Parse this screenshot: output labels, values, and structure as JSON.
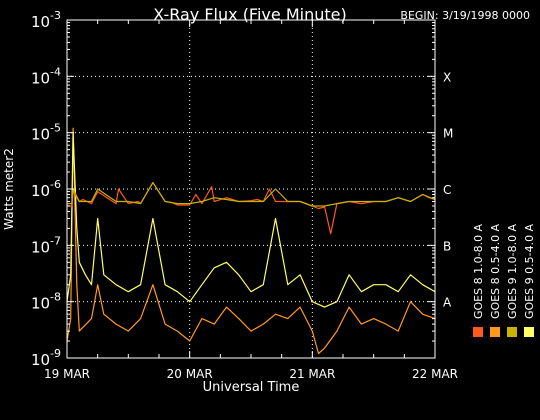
{
  "chart_data": {
    "type": "line",
    "title": "X-Ray Flux (Five Minute)",
    "begin_label": "BEGIN: 3/19/1998 0000",
    "xlabel": "Universal Time",
    "ylabel": "Watts meter2",
    "x_ticks": [
      "19 MAR",
      "20 MAR",
      "21 MAR",
      "22 MAR"
    ],
    "xlim_days": [
      0,
      3
    ],
    "y_scale": "log",
    "ylim": [
      1e-09,
      0.001
    ],
    "y_ticks": [
      {
        "base": "10",
        "exp": "-9"
      },
      {
        "base": "10",
        "exp": "-8"
      },
      {
        "base": "10",
        "exp": "-7"
      },
      {
        "base": "10",
        "exp": "-6"
      },
      {
        "base": "10",
        "exp": "-5"
      },
      {
        "base": "10",
        "exp": "-4"
      },
      {
        "base": "10",
        "exp": "-3"
      }
    ],
    "flare_classes": [
      {
        "label": "A",
        "value": 1e-08
      },
      {
        "label": "B",
        "value": 1e-07
      },
      {
        "label": "C",
        "value": 1e-06
      },
      {
        "label": "M",
        "value": 1e-05
      },
      {
        "label": "X",
        "value": 0.0001
      }
    ],
    "grid": true,
    "legend_position": "right",
    "series": [
      {
        "name": "GOES 8 1.0-8.0 A",
        "color": "#ff5a1e",
        "x": [
          0.0,
          0.04,
          0.05,
          0.1,
          0.13,
          0.2,
          0.25,
          0.4,
          0.42,
          0.5,
          0.58,
          0.6,
          0.7,
          0.8,
          0.85,
          0.9,
          1.0,
          1.05,
          1.1,
          1.18,
          1.2,
          1.3,
          1.4,
          1.5,
          1.55,
          1.6,
          1.65,
          1.7,
          1.8,
          1.9,
          2.0,
          2.05,
          2.1,
          2.15,
          2.2,
          2.3,
          2.4,
          2.5,
          2.6,
          2.7,
          2.8,
          2.9,
          2.95,
          3.0
        ],
        "y": [
          5e-07,
          5e-07,
          9e-07,
          6e-07,
          6.5e-07,
          5.5e-07,
          9e-07,
          5.5e-07,
          1e-06,
          5.5e-07,
          6e-07,
          5.5e-07,
          1.3e-06,
          6e-07,
          5.8e-07,
          5.2e-07,
          5.2e-07,
          8e-07,
          5.5e-07,
          1.1e-06,
          6e-07,
          7e-07,
          6e-07,
          6.2e-07,
          6.5e-07,
          6e-07,
          1e-06,
          6e-07,
          6e-07,
          6e-07,
          5e-07,
          4.5e-07,
          4.8e-07,
          1.6e-07,
          5.5e-07,
          6e-07,
          5.5e-07,
          6e-07,
          6e-07,
          7e-07,
          6e-07,
          8e-07,
          7e-07,
          6.5e-07
        ]
      },
      {
        "name": "GOES 8 0.5-4.0 A",
        "color": "#ff9a1e",
        "x": [
          0.0,
          0.03,
          0.05,
          0.08,
          0.1,
          0.2,
          0.25,
          0.3,
          0.4,
          0.5,
          0.6,
          0.7,
          0.8,
          0.9,
          1.0,
          1.1,
          1.2,
          1.3,
          1.4,
          1.5,
          1.6,
          1.7,
          1.8,
          1.9,
          2.0,
          2.05,
          2.1,
          2.2,
          2.3,
          2.4,
          2.5,
          2.6,
          2.7,
          2.8,
          2.9,
          3.0
        ],
        "y": [
          2e-09,
          5e-09,
          1.2e-05,
          2e-08,
          3e-09,
          5e-09,
          2e-08,
          6e-09,
          4e-09,
          3e-09,
          5e-09,
          2e-08,
          4e-09,
          3e-09,
          2e-09,
          5e-09,
          4e-09,
          8e-09,
          5e-09,
          3e-09,
          4e-09,
          6e-09,
          5e-09,
          8e-09,
          3e-09,
          1.2e-09,
          1.5e-09,
          3e-09,
          8e-09,
          4e-09,
          5e-09,
          4e-09,
          3e-09,
          1e-08,
          6e-09,
          5e-09
        ]
      },
      {
        "name": "GOES 9 1.0-8.0 A",
        "color": "#c8b400",
        "x": [
          0.0,
          0.04,
          0.05,
          0.1,
          0.2,
          0.25,
          0.4,
          0.5,
          0.6,
          0.7,
          0.8,
          0.9,
          1.0,
          1.1,
          1.2,
          1.3,
          1.4,
          1.5,
          1.6,
          1.7,
          1.8,
          1.9,
          2.0,
          2.1,
          2.2,
          2.3,
          2.4,
          2.5,
          2.6,
          2.7,
          2.8,
          2.9,
          3.0
        ],
        "y": [
          5.5e-07,
          5.5e-07,
          1e-06,
          6e-07,
          6e-07,
          1e-06,
          6e-07,
          6e-07,
          5.5e-07,
          1.3e-06,
          6e-07,
          5.5e-07,
          5.5e-07,
          6e-07,
          7e-07,
          6.5e-07,
          6e-07,
          6e-07,
          6e-07,
          1e-06,
          6e-07,
          6e-07,
          5e-07,
          5e-07,
          5.5e-07,
          6e-07,
          6e-07,
          6e-07,
          6e-07,
          7e-07,
          6e-07,
          8e-07,
          6.5e-07
        ]
      },
      {
        "name": "GOES 9 0.5-4.0 A",
        "color": "#ffff64",
        "x": [
          0.0,
          0.03,
          0.05,
          0.08,
          0.1,
          0.15,
          0.2,
          0.25,
          0.3,
          0.4,
          0.5,
          0.6,
          0.7,
          0.8,
          0.9,
          1.0,
          1.1,
          1.2,
          1.3,
          1.4,
          1.5,
          1.6,
          1.7,
          1.8,
          1.9,
          2.0,
          2.1,
          2.2,
          2.3,
          2.4,
          2.5,
          2.6,
          2.7,
          2.8,
          2.9,
          3.0
        ],
        "y": [
          1e-08,
          3e-08,
          1e-05,
          2e-07,
          5e-08,
          3e-08,
          2e-08,
          3e-07,
          3e-08,
          2e-08,
          1.5e-08,
          2e-08,
          3e-07,
          2e-08,
          1.5e-08,
          1e-08,
          2e-08,
          4e-08,
          5e-08,
          3e-08,
          1.5e-08,
          2e-08,
          3e-07,
          2e-08,
          3e-08,
          1e-08,
          8e-09,
          1e-08,
          3e-08,
          1.5e-08,
          2e-08,
          2e-08,
          1.5e-08,
          3e-08,
          2e-08,
          1.5e-08
        ]
      }
    ]
  }
}
